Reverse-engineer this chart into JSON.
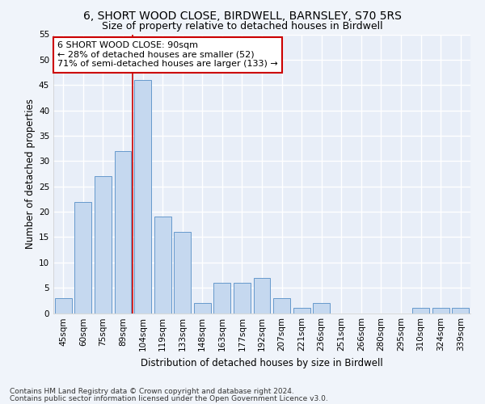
{
  "title1": "6, SHORT WOOD CLOSE, BIRDWELL, BARNSLEY, S70 5RS",
  "title2": "Size of property relative to detached houses in Birdwell",
  "xlabel": "Distribution of detached houses by size in Birdwell",
  "ylabel": "Number of detached properties",
  "footer1": "Contains HM Land Registry data © Crown copyright and database right 2024.",
  "footer2": "Contains public sector information licensed under the Open Government Licence v3.0.",
  "annotation_line1": "6 SHORT WOOD CLOSE: 90sqm",
  "annotation_line2": "← 28% of detached houses are smaller (52)",
  "annotation_line3": "71% of semi-detached houses are larger (133) →",
  "bar_labels": [
    "45sqm",
    "60sqm",
    "75sqm",
    "89sqm",
    "104sqm",
    "119sqm",
    "133sqm",
    "148sqm",
    "163sqm",
    "177sqm",
    "192sqm",
    "207sqm",
    "221sqm",
    "236sqm",
    "251sqm",
    "266sqm",
    "280sqm",
    "295sqm",
    "310sqm",
    "324sqm",
    "339sqm"
  ],
  "bar_values": [
    3,
    22,
    27,
    32,
    46,
    19,
    16,
    2,
    6,
    6,
    7,
    3,
    1,
    2,
    0,
    0,
    0,
    0,
    1,
    1,
    1
  ],
  "bar_color": "#c5d8ef",
  "bar_edge_color": "#6699cc",
  "vline_x": 3.5,
  "vline_color": "#cc0000",
  "ylim": [
    0,
    55
  ],
  "yticks": [
    0,
    5,
    10,
    15,
    20,
    25,
    30,
    35,
    40,
    45,
    50,
    55
  ],
  "bg_color": "#f0f4fa",
  "plot_bg_color": "#e8eef8",
  "annotation_box_color": "white",
  "annotation_box_edgecolor": "#cc0000",
  "grid_color": "white",
  "title_fontsize": 10,
  "subtitle_fontsize": 9,
  "axis_label_fontsize": 8.5,
  "tick_fontsize": 7.5,
  "annotation_fontsize": 8,
  "footer_fontsize": 6.5
}
